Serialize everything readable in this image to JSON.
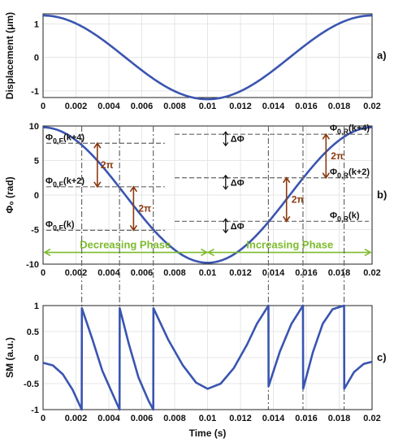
{
  "chart_data": [
    {
      "type": "line",
      "panel_label": "a)",
      "xlabel": "",
      "ylabel": "Displacement (μm)",
      "xlim": [
        0,
        0.02
      ],
      "ylim": [
        -1.2,
        1.3
      ],
      "x_ticks": [
        "0",
        "0.002",
        "0.004",
        "0.006",
        "0.008",
        "0.01",
        "0.012",
        "0.014",
        "0.016",
        "0.018",
        "0.02"
      ],
      "y_ticks": [
        "-1",
        "0",
        "1"
      ],
      "series": [
        {
          "x": [
            0,
            0.001,
            0.002,
            0.003,
            0.004,
            0.005,
            0.006,
            0.007,
            0.008,
            0.009,
            0.01,
            0.011,
            0.012,
            0.013,
            0.014,
            0.015,
            0.016,
            0.017,
            0.018,
            0.019,
            0.02
          ],
          "values": [
            1.25,
            1.19,
            1.01,
            0.73,
            0.39,
            0.0,
            -0.39,
            -0.73,
            -1.01,
            -1.19,
            -1.25,
            -1.19,
            -1.01,
            -0.73,
            -0.39,
            0.0,
            0.39,
            0.73,
            1.01,
            1.19,
            1.25
          ]
        }
      ],
      "grid": true
    },
    {
      "type": "line",
      "panel_label": "b)",
      "xlabel": "",
      "ylabel": "Φ₀ (rad)",
      "xlim": [
        0,
        0.02
      ],
      "ylim": [
        -10,
        10
      ],
      "x_ticks": [
        "0",
        "0.002",
        "0.004",
        "0.006",
        "0.008",
        "0.01",
        "0.012",
        "0.014",
        "0.016",
        "0.018",
        "0.02"
      ],
      "y_ticks": [
        "-10",
        "-5",
        "0",
        "5",
        "10"
      ],
      "series": [
        {
          "x": [
            0,
            0.001,
            0.002,
            0.003,
            0.004,
            0.005,
            0.006,
            0.007,
            0.008,
            0.009,
            0.01,
            0.011,
            0.012,
            0.013,
            0.014,
            0.015,
            0.016,
            0.017,
            0.018,
            0.019,
            0.02
          ],
          "values": [
            9.8,
            9.32,
            7.93,
            5.76,
            3.03,
            0.0,
            -3.03,
            -5.76,
            -7.93,
            -9.32,
            -9.8,
            -9.32,
            -7.93,
            -5.76,
            -3.03,
            0.0,
            3.03,
            5.76,
            7.93,
            9.32,
            9.8
          ]
        }
      ],
      "levels_left": [
        {
          "label": "Φ",
          "sub": "0,F",
          "suffix": "(k+4)",
          "y": 7.5
        },
        {
          "label": "Φ",
          "sub": "0,F",
          "suffix": "(k+2)",
          "y": 1.2
        },
        {
          "label": "Φ",
          "sub": "0,F",
          "suffix": "(k)",
          "y": -5.1
        }
      ],
      "levels_right": [
        {
          "label": "Φ",
          "sub": "0,R",
          "suffix": "(k+4)",
          "y": 8.8
        },
        {
          "label": "Φ",
          "sub": "0,R",
          "suffix": "(k+2)",
          "y": 2.5
        },
        {
          "label": "Φ",
          "sub": "0,R",
          "suffix": "(k)",
          "y": -3.8
        }
      ],
      "two_pi_label": "2π",
      "delta_label": "ΔΦ",
      "phases": [
        "Decreasing Phase",
        "Increasing Phase"
      ],
      "grid": true
    },
    {
      "type": "line",
      "panel_label": "c)",
      "xlabel": "Time (s)",
      "ylabel": "SM (a.u.)",
      "xlim": [
        0,
        0.02
      ],
      "ylim": [
        -1,
        1
      ],
      "x_ticks": [
        "0",
        "0.002",
        "0.004",
        "0.006",
        "0.008",
        "0.01",
        "0.012",
        "0.014",
        "0.016",
        "0.018",
        "0.02"
      ],
      "y_ticks": [
        "-1",
        "-0.5",
        "0",
        "0.5",
        "1"
      ],
      "fringe_times": [
        0.00235,
        0.00465,
        0.0067,
        0.0137,
        0.0158,
        0.0183
      ],
      "series": [
        {
          "x": [
            0,
            0.0006,
            0.0012,
            0.0018,
            0.00235,
            0.00236,
            0.003,
            0.0036,
            0.0042,
            0.00465,
            0.00466,
            0.0052,
            0.0058,
            0.0064,
            0.0067,
            0.00671,
            0.0076,
            0.0085,
            0.0093,
            0.01,
            0.0108,
            0.0116,
            0.0124,
            0.013,
            0.0137,
            0.01371,
            0.0144,
            0.0151,
            0.0158,
            0.01581,
            0.0164,
            0.017,
            0.0176,
            0.0183,
            0.01831,
            0.0189,
            0.0195,
            0.02
          ],
          "values": [
            -0.1,
            -0.15,
            -0.32,
            -0.62,
            -1.0,
            0.95,
            0.35,
            -0.25,
            -0.68,
            -1.0,
            0.95,
            0.28,
            -0.38,
            -0.82,
            -1.0,
            0.95,
            0.35,
            -0.15,
            -0.48,
            -0.6,
            -0.5,
            -0.2,
            0.25,
            0.65,
            1.0,
            -0.55,
            0.12,
            0.65,
            1.0,
            -0.6,
            0.1,
            0.65,
            0.93,
            1.0,
            -0.6,
            -0.28,
            -0.12,
            -0.08
          ]
        }
      ],
      "grid": true
    }
  ]
}
